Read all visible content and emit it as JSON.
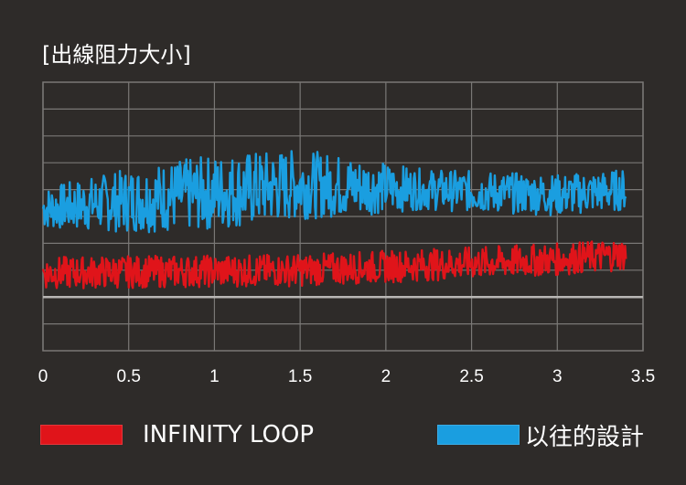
{
  "chart_data": {
    "type": "line",
    "title": "[出線阻力大小]",
    "xlabel": "",
    "ylabel": "",
    "xlim": [
      0,
      3.5
    ],
    "ylim": [
      0,
      1
    ],
    "x_ticks": [
      "0",
      "0.5",
      "1",
      "1.5",
      "2",
      "2.5",
      "3",
      "3.5"
    ],
    "grid": true,
    "legend_position": "bottom",
    "series": [
      {
        "name": "INFINITY LOOP",
        "color": "#e0141a",
        "x": [
          0,
          1.5,
          3,
          3.4
        ],
        "y": [
          0.29,
          0.3,
          0.34,
          0.36
        ]
      },
      {
        "name": "以往的設計",
        "color": "#1a9ee0",
        "x": [
          0,
          1.5,
          3,
          3.4
        ],
        "y": [
          0.53,
          0.62,
          0.58,
          0.6
        ]
      }
    ]
  }
}
